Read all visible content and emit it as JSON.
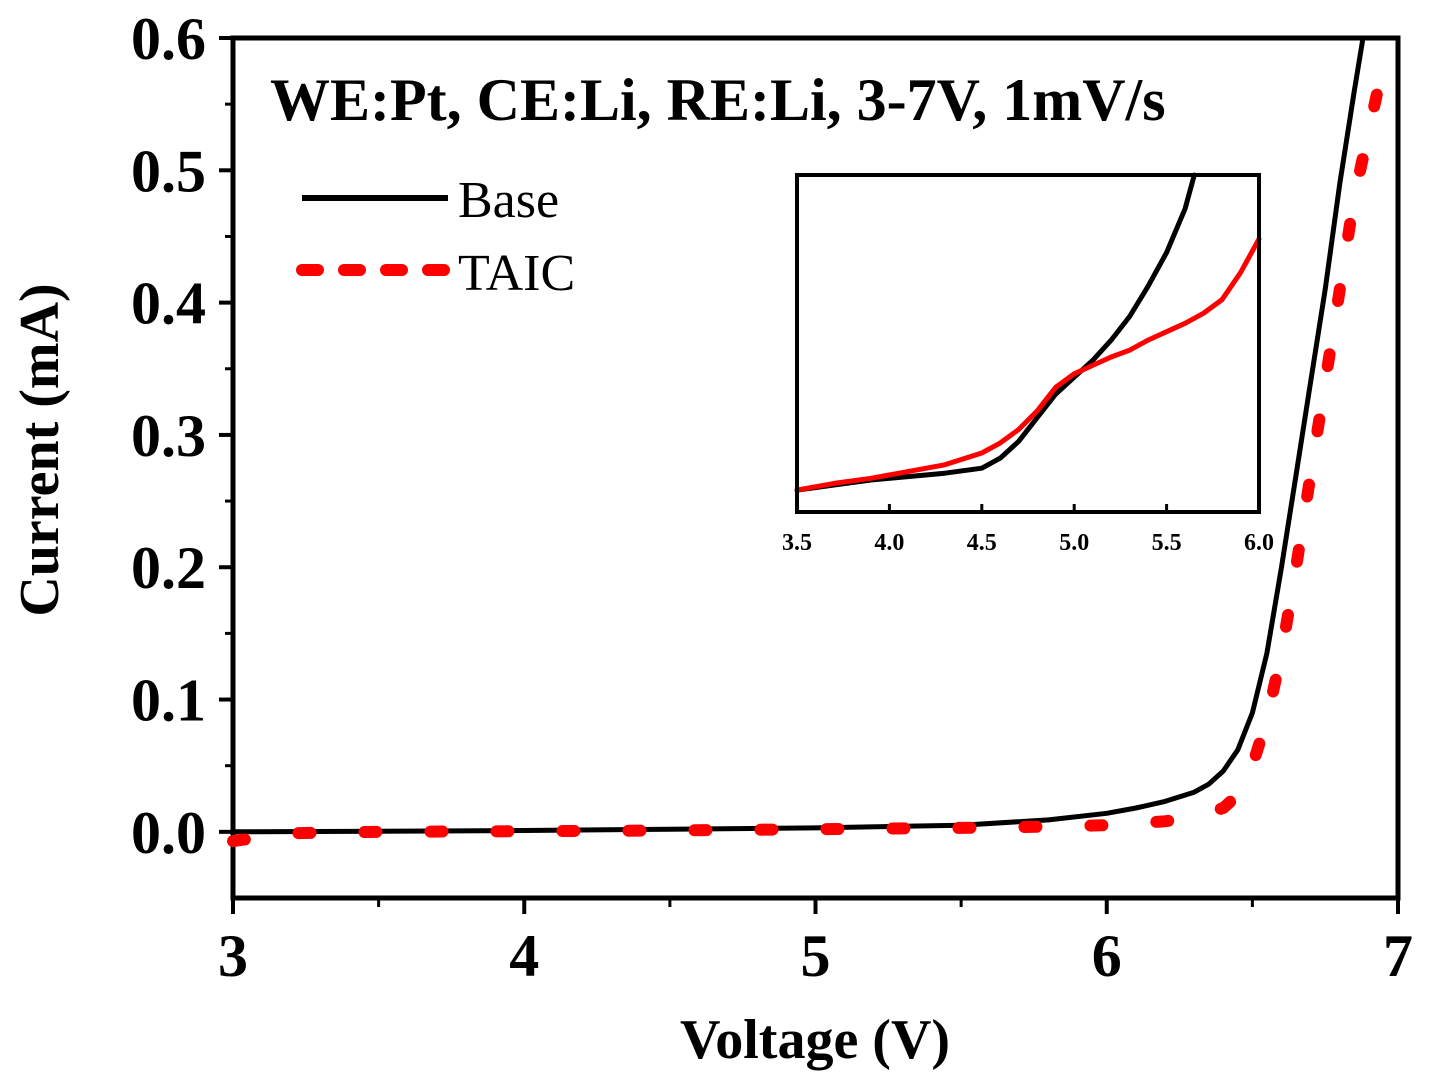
{
  "chart_data": [
    {
      "type": "line",
      "title": "",
      "annotation": "WE:Pt, CE:Li, RE:Li, 3-7V, 1mV/s",
      "xlabel": "Voltage (V)",
      "ylabel": "Current (mA)",
      "xlim": [
        3,
        7
      ],
      "ylim": [
        -0.05,
        0.6
      ],
      "x_ticks": [
        3,
        4,
        5,
        6,
        7
      ],
      "x_tick_labels": [
        "3",
        "4",
        "5",
        "6",
        "7"
      ],
      "y_ticks": [
        0.0,
        0.1,
        0.2,
        0.3,
        0.4,
        0.5,
        0.6
      ],
      "y_tick_labels": [
        "0.0",
        "0.1",
        "0.2",
        "0.3",
        "0.4",
        "0.5",
        "0.6"
      ],
      "legend_position": "top-left",
      "grid": false,
      "series": [
        {
          "name": "Base",
          "color": "#000000",
          "style": "solid",
          "x": [
            3.0,
            3.5,
            4.0,
            4.5,
            5.0,
            5.5,
            5.8,
            6.0,
            6.1,
            6.2,
            6.3,
            6.35,
            6.4,
            6.45,
            6.5,
            6.55,
            6.6,
            6.65,
            6.7,
            6.75,
            6.8,
            6.85,
            6.88
          ],
          "y": [
            0.0,
            0.0005,
            0.001,
            0.002,
            0.003,
            0.005,
            0.009,
            0.014,
            0.018,
            0.023,
            0.03,
            0.036,
            0.046,
            0.062,
            0.09,
            0.135,
            0.2,
            0.27,
            0.34,
            0.41,
            0.49,
            0.56,
            0.6
          ]
        },
        {
          "name": "TAIC",
          "color": "#ff0000",
          "style": "dashed",
          "x": [
            3.0,
            3.2,
            3.5,
            4.0,
            4.5,
            5.0,
            5.5,
            5.8,
            6.0,
            6.2,
            6.3,
            6.4,
            6.45,
            6.5,
            6.55,
            6.6,
            6.65,
            6.7,
            6.75,
            6.8,
            6.85,
            6.9,
            6.93
          ],
          "y": [
            -0.007,
            -0.001,
            0.0,
            0.0005,
            0.001,
            0.002,
            0.003,
            0.004,
            0.005,
            0.008,
            0.011,
            0.018,
            0.028,
            0.05,
            0.085,
            0.135,
            0.2,
            0.27,
            0.34,
            0.41,
            0.48,
            0.53,
            0.56
          ]
        }
      ]
    },
    {
      "type": "line",
      "title": "",
      "xlabel": "",
      "ylabel": "",
      "xlim": [
        3.5,
        6.0
      ],
      "ylim": [
        0,
        1
      ],
      "x_ticks": [
        3.5,
        4.0,
        4.5,
        5.0,
        5.5,
        6.0
      ],
      "x_tick_labels": [
        "3.5",
        "4.0",
        "4.5",
        "5.0",
        "5.5",
        "6.0"
      ],
      "y_ticks": [],
      "legend_position": "none",
      "grid": false,
      "series": [
        {
          "name": "Base",
          "color": "#000000",
          "style": "solid",
          "x": [
            3.5,
            3.7,
            3.9,
            4.1,
            4.3,
            4.5,
            4.6,
            4.7,
            4.8,
            4.9,
            5.0,
            5.1,
            5.2,
            5.3,
            5.4,
            5.5,
            5.6,
            5.65
          ],
          "y": [
            0.065,
            0.08,
            0.095,
            0.105,
            0.115,
            0.13,
            0.16,
            0.21,
            0.28,
            0.35,
            0.4,
            0.45,
            0.51,
            0.58,
            0.67,
            0.77,
            0.9,
            1.0
          ]
        },
        {
          "name": "TAIC",
          "color": "#ff0000",
          "style": "solid",
          "x": [
            3.5,
            3.7,
            3.9,
            4.1,
            4.3,
            4.5,
            4.6,
            4.7,
            4.8,
            4.9,
            5.0,
            5.1,
            5.2,
            5.3,
            5.4,
            5.5,
            5.6,
            5.7,
            5.8,
            5.9,
            6.0
          ],
          "y": [
            0.065,
            0.085,
            0.1,
            0.12,
            0.14,
            0.175,
            0.205,
            0.245,
            0.3,
            0.37,
            0.41,
            0.435,
            0.46,
            0.48,
            0.51,
            0.535,
            0.56,
            0.59,
            0.63,
            0.71,
            0.81
          ]
        }
      ]
    }
  ]
}
